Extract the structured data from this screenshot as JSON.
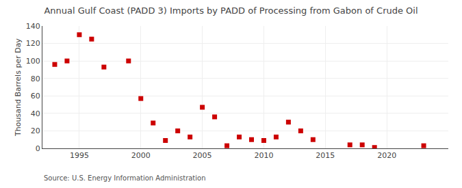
{
  "chart_data": {
    "type": "scatter",
    "title": "Annual Gulf Coast (PADD 3) Imports by PADD of Processing from Gabon of Crude Oil",
    "ylabel": "Thousand Barrels per Day",
    "annotations": [
      "Source: U.S. Energy Information Administration"
    ],
    "x": [
      1993,
      1994,
      1995,
      1996,
      1997,
      1999,
      2000,
      2001,
      2002,
      2003,
      2004,
      2005,
      2006,
      2007,
      2008,
      2009,
      2010,
      2011,
      2012,
      2013,
      2014,
      2017,
      2018,
      2019,
      2023
    ],
    "values": [
      96,
      100,
      130,
      125,
      93,
      100,
      57,
      29,
      9,
      20,
      13,
      47,
      36,
      3,
      13,
      10,
      9,
      13,
      30,
      20,
      10,
      4,
      4,
      1,
      3
    ],
    "color": "#cc0000",
    "marker": "square",
    "xlim": [
      1992,
      2025
    ],
    "xticks": [
      1995,
      2000,
      2005,
      2010,
      2015,
      2020
    ],
    "ylim": [
      0,
      140
    ],
    "yticks": [
      0,
      20,
      40,
      60,
      80,
      100,
      120,
      140
    ],
    "grid": true
  }
}
